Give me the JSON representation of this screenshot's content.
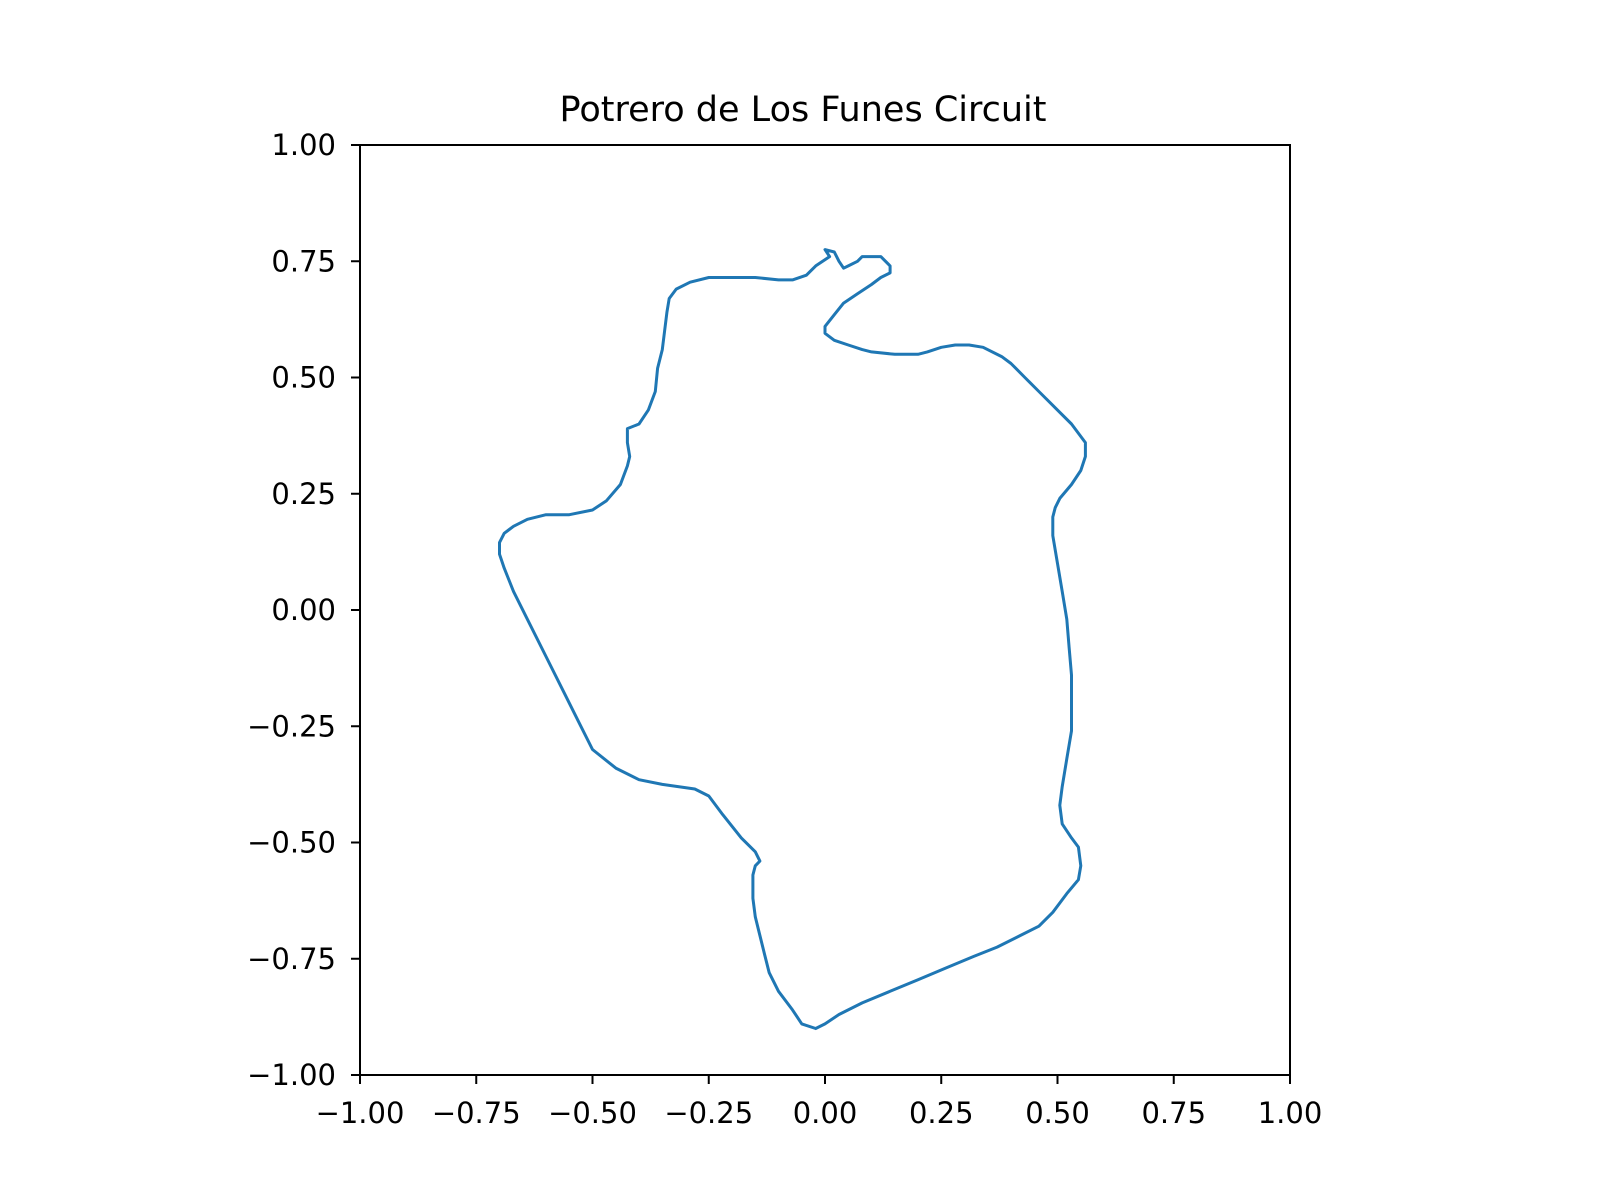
{
  "chart_data": {
    "type": "line",
    "title": "Potrero de Los Funes Circuit",
    "xlabel": "",
    "ylabel": "",
    "xlim": [
      -1.0,
      1.0
    ],
    "ylim": [
      -1.0,
      1.0
    ],
    "xticks": [
      "−1.00",
      "−0.75",
      "−0.50",
      "−0.25",
      "0.00",
      "0.25",
      "0.50",
      "0.75",
      "1.00"
    ],
    "yticks": [
      "−1.00",
      "−0.75",
      "−0.50",
      "−0.25",
      "0.00",
      "0.25",
      "0.50",
      "0.75",
      "1.00"
    ],
    "grid": false,
    "legend": "none",
    "series": [
      {
        "color": "#1f77b4",
        "points": [
          [
            -0.02,
            -0.9
          ],
          [
            -0.05,
            -0.89
          ],
          [
            -0.07,
            -0.86
          ],
          [
            -0.1,
            -0.82
          ],
          [
            -0.12,
            -0.78
          ],
          [
            -0.13,
            -0.74
          ],
          [
            -0.14,
            -0.7
          ],
          [
            -0.15,
            -0.66
          ],
          [
            -0.155,
            -0.62
          ],
          [
            -0.155,
            -0.57
          ],
          [
            -0.15,
            -0.55
          ],
          [
            -0.14,
            -0.54
          ],
          [
            -0.15,
            -0.52
          ],
          [
            -0.18,
            -0.49
          ],
          [
            -0.22,
            -0.44
          ],
          [
            -0.25,
            -0.4
          ],
          [
            -0.28,
            -0.385
          ],
          [
            -0.35,
            -0.375
          ],
          [
            -0.4,
            -0.365
          ],
          [
            -0.45,
            -0.34
          ],
          [
            -0.5,
            -0.3
          ],
          [
            -0.53,
            -0.24
          ],
          [
            -0.56,
            -0.18
          ],
          [
            -0.6,
            -0.1
          ],
          [
            -0.64,
            -0.02
          ],
          [
            -0.67,
            0.04
          ],
          [
            -0.69,
            0.09
          ],
          [
            -0.7,
            0.12
          ],
          [
            -0.7,
            0.145
          ],
          [
            -0.69,
            0.165
          ],
          [
            -0.67,
            0.18
          ],
          [
            -0.64,
            0.195
          ],
          [
            -0.6,
            0.205
          ],
          [
            -0.55,
            0.205
          ],
          [
            -0.5,
            0.215
          ],
          [
            -0.47,
            0.235
          ],
          [
            -0.44,
            0.27
          ],
          [
            -0.425,
            0.31
          ],
          [
            -0.42,
            0.33
          ],
          [
            -0.425,
            0.36
          ],
          [
            -0.425,
            0.39
          ],
          [
            -0.4,
            0.4
          ],
          [
            -0.38,
            0.43
          ],
          [
            -0.365,
            0.47
          ],
          [
            -0.36,
            0.52
          ],
          [
            -0.35,
            0.56
          ],
          [
            -0.345,
            0.6
          ],
          [
            -0.34,
            0.64
          ],
          [
            -0.335,
            0.67
          ],
          [
            -0.32,
            0.69
          ],
          [
            -0.29,
            0.705
          ],
          [
            -0.25,
            0.715
          ],
          [
            -0.2,
            0.715
          ],
          [
            -0.15,
            0.715
          ],
          [
            -0.1,
            0.71
          ],
          [
            -0.07,
            0.71
          ],
          [
            -0.04,
            0.72
          ],
          [
            -0.02,
            0.74
          ],
          [
            0.01,
            0.76
          ],
          [
            0.0,
            0.775
          ],
          [
            0.02,
            0.77
          ],
          [
            0.03,
            0.75
          ],
          [
            0.04,
            0.735
          ],
          [
            0.05,
            0.74
          ],
          [
            0.07,
            0.75
          ],
          [
            0.08,
            0.76
          ],
          [
            0.12,
            0.76
          ],
          [
            0.14,
            0.74
          ],
          [
            0.14,
            0.725
          ],
          [
            0.12,
            0.715
          ],
          [
            0.1,
            0.7
          ],
          [
            0.07,
            0.68
          ],
          [
            0.04,
            0.66
          ],
          [
            0.02,
            0.635
          ],
          [
            0.0,
            0.61
          ],
          [
            0.0,
            0.595
          ],
          [
            0.02,
            0.58
          ],
          [
            0.05,
            0.57
          ],
          [
            0.08,
            0.56
          ],
          [
            0.1,
            0.555
          ],
          [
            0.15,
            0.55
          ],
          [
            0.2,
            0.55
          ],
          [
            0.22,
            0.555
          ],
          [
            0.25,
            0.565
          ],
          [
            0.28,
            0.57
          ],
          [
            0.31,
            0.57
          ],
          [
            0.34,
            0.565
          ],
          [
            0.38,
            0.545
          ],
          [
            0.4,
            0.53
          ],
          [
            0.43,
            0.5
          ],
          [
            0.46,
            0.47
          ],
          [
            0.5,
            0.43
          ],
          [
            0.53,
            0.4
          ],
          [
            0.56,
            0.36
          ],
          [
            0.56,
            0.33
          ],
          [
            0.55,
            0.3
          ],
          [
            0.53,
            0.27
          ],
          [
            0.505,
            0.24
          ],
          [
            0.495,
            0.22
          ],
          [
            0.49,
            0.2
          ],
          [
            0.49,
            0.16
          ],
          [
            0.5,
            0.1
          ],
          [
            0.51,
            0.04
          ],
          [
            0.52,
            -0.02
          ],
          [
            0.525,
            -0.08
          ],
          [
            0.53,
            -0.14
          ],
          [
            0.53,
            -0.2
          ],
          [
            0.53,
            -0.26
          ],
          [
            0.52,
            -0.32
          ],
          [
            0.51,
            -0.38
          ],
          [
            0.505,
            -0.42
          ],
          [
            0.51,
            -0.46
          ],
          [
            0.53,
            -0.49
          ],
          [
            0.545,
            -0.51
          ],
          [
            0.55,
            -0.55
          ],
          [
            0.545,
            -0.58
          ],
          [
            0.52,
            -0.61
          ],
          [
            0.49,
            -0.65
          ],
          [
            0.46,
            -0.68
          ],
          [
            0.42,
            -0.7
          ],
          [
            0.37,
            -0.725
          ],
          [
            0.32,
            -0.745
          ],
          [
            0.26,
            -0.77
          ],
          [
            0.2,
            -0.795
          ],
          [
            0.14,
            -0.82
          ],
          [
            0.08,
            -0.845
          ],
          [
            0.03,
            -0.87
          ],
          [
            0.0,
            -0.89
          ],
          [
            -0.02,
            -0.9
          ]
        ]
      }
    ]
  }
}
